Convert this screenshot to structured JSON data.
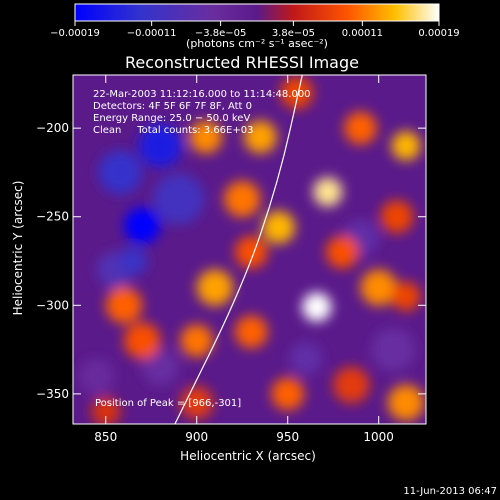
{
  "chart_data": {
    "type": "heatmap",
    "title": "Reconstructed RHESSI Image",
    "xlabel": "Heliocentric X (arcsec)",
    "ylabel": "Heliocentric Y (arcsec)",
    "xlim": [
      832,
      1026
    ],
    "ylim": [
      -367,
      -170
    ],
    "x_ticks": [
      850,
      900,
      950,
      1000
    ],
    "y_ticks": [
      -200,
      -250,
      -300,
      -350
    ],
    "x_tick_labels": [
      "850",
      "900",
      "950",
      "1000"
    ],
    "y_tick_labels": [
      "−200",
      "−250",
      "−300",
      "−350"
    ],
    "colorbar": {
      "ticks": [
        -0.00019,
        -0.00011,
        -3.8e-05,
        3.8e-05,
        0.00011,
        0.00019
      ],
      "tick_labels": [
        "−0.00019",
        "−0.00011",
        "−3.8e−05",
        "3.8e−05",
        "0.00011",
        "0.00019"
      ],
      "unit_label": "(photons cm⁻² s⁻¹ asec⁻²)",
      "range": [
        -0.00019,
        0.00019
      ]
    },
    "annotations": {
      "time": "22-Mar-2003 11:12:16.000 to 11:14:48.000",
      "detectors": "Detectors: 4F 5F 6F 7F 8F, Att 0",
      "energy": "Energy Range: 25.0 − 50.0 keV",
      "clean": "Clean     Total counts: 3.66E+03",
      "peak": "Position of Peak = [966,-301]"
    },
    "peak_position": [
      966,
      -301
    ],
    "limb_curve": [
      [
        888,
        -367
      ],
      [
        925,
        -290
      ],
      [
        945,
        -230
      ],
      [
        958,
        -170
      ]
    ],
    "sources": [
      {
        "x": 870,
        "y": -255,
        "v": -0.00019,
        "r": 10
      },
      {
        "x": 880,
        "y": -210,
        "v": -0.00015,
        "r": 12
      },
      {
        "x": 858,
        "y": -225,
        "v": -0.00012,
        "r": 12
      },
      {
        "x": 890,
        "y": -240,
        "v": -0.0001,
        "r": 14
      },
      {
        "x": 855,
        "y": -280,
        "v": -8e-05,
        "r": 10
      },
      {
        "x": 865,
        "y": -275,
        "v": -0.00011,
        "r": 8
      },
      {
        "x": 990,
        "y": -262,
        "v": -6e-05,
        "r": 10
      },
      {
        "x": 960,
        "y": -330,
        "v": -6e-05,
        "r": 9
      },
      {
        "x": 880,
        "y": -335,
        "v": -5e-05,
        "r": 10
      },
      {
        "x": 1008,
        "y": -325,
        "v": -5e-05,
        "r": 12
      },
      {
        "x": 845,
        "y": -340,
        "v": -4e-05,
        "r": 10
      },
      {
        "x": 966,
        "y": -301,
        "v": 0.00019,
        "r": 8
      },
      {
        "x": 972,
        "y": -236,
        "v": 0.00017,
        "r": 8
      },
      {
        "x": 945,
        "y": -256,
        "v": 0.00014,
        "r": 9
      },
      {
        "x": 1015,
        "y": -210,
        "v": 0.00014,
        "r": 8
      },
      {
        "x": 935,
        "y": -205,
        "v": 0.00013,
        "r": 9
      },
      {
        "x": 910,
        "y": -290,
        "v": 0.00013,
        "r": 10
      },
      {
        "x": 925,
        "y": -240,
        "v": 0.00011,
        "r": 10
      },
      {
        "x": 905,
        "y": -205,
        "v": 0.00012,
        "r": 9
      },
      {
        "x": 1000,
        "y": -290,
        "v": 0.00012,
        "r": 10
      },
      {
        "x": 1010,
        "y": -250,
        "v": 8e-05,
        "r": 9
      },
      {
        "x": 990,
        "y": -200,
        "v": 0.0001,
        "r": 9
      },
      {
        "x": 860,
        "y": -300,
        "v": 0.0001,
        "r": 10
      },
      {
        "x": 870,
        "y": -320,
        "v": 9e-05,
        "r": 10
      },
      {
        "x": 900,
        "y": -320,
        "v": 0.00011,
        "r": 9
      },
      {
        "x": 930,
        "y": -315,
        "v": 0.0001,
        "r": 9
      },
      {
        "x": 950,
        "y": -350,
        "v": 0.0001,
        "r": 9
      },
      {
        "x": 985,
        "y": -345,
        "v": 7e-05,
        "r": 10
      },
      {
        "x": 1015,
        "y": -355,
        "v": 0.00012,
        "r": 10
      },
      {
        "x": 900,
        "y": -355,
        "v": 7e-05,
        "r": 9
      },
      {
        "x": 1015,
        "y": -295,
        "v": 8e-05,
        "r": 8
      },
      {
        "x": 955,
        "y": -180,
        "v": 8e-05,
        "r": 9
      },
      {
        "x": 850,
        "y": -360,
        "v": 6e-05,
        "r": 8
      },
      {
        "x": 930,
        "y": -270,
        "v": 9e-05,
        "r": 9
      },
      {
        "x": 980,
        "y": -270,
        "v": 9e-05,
        "r": 9
      }
    ]
  },
  "footer": {
    "date": "11-Jun-2013 06:47"
  }
}
